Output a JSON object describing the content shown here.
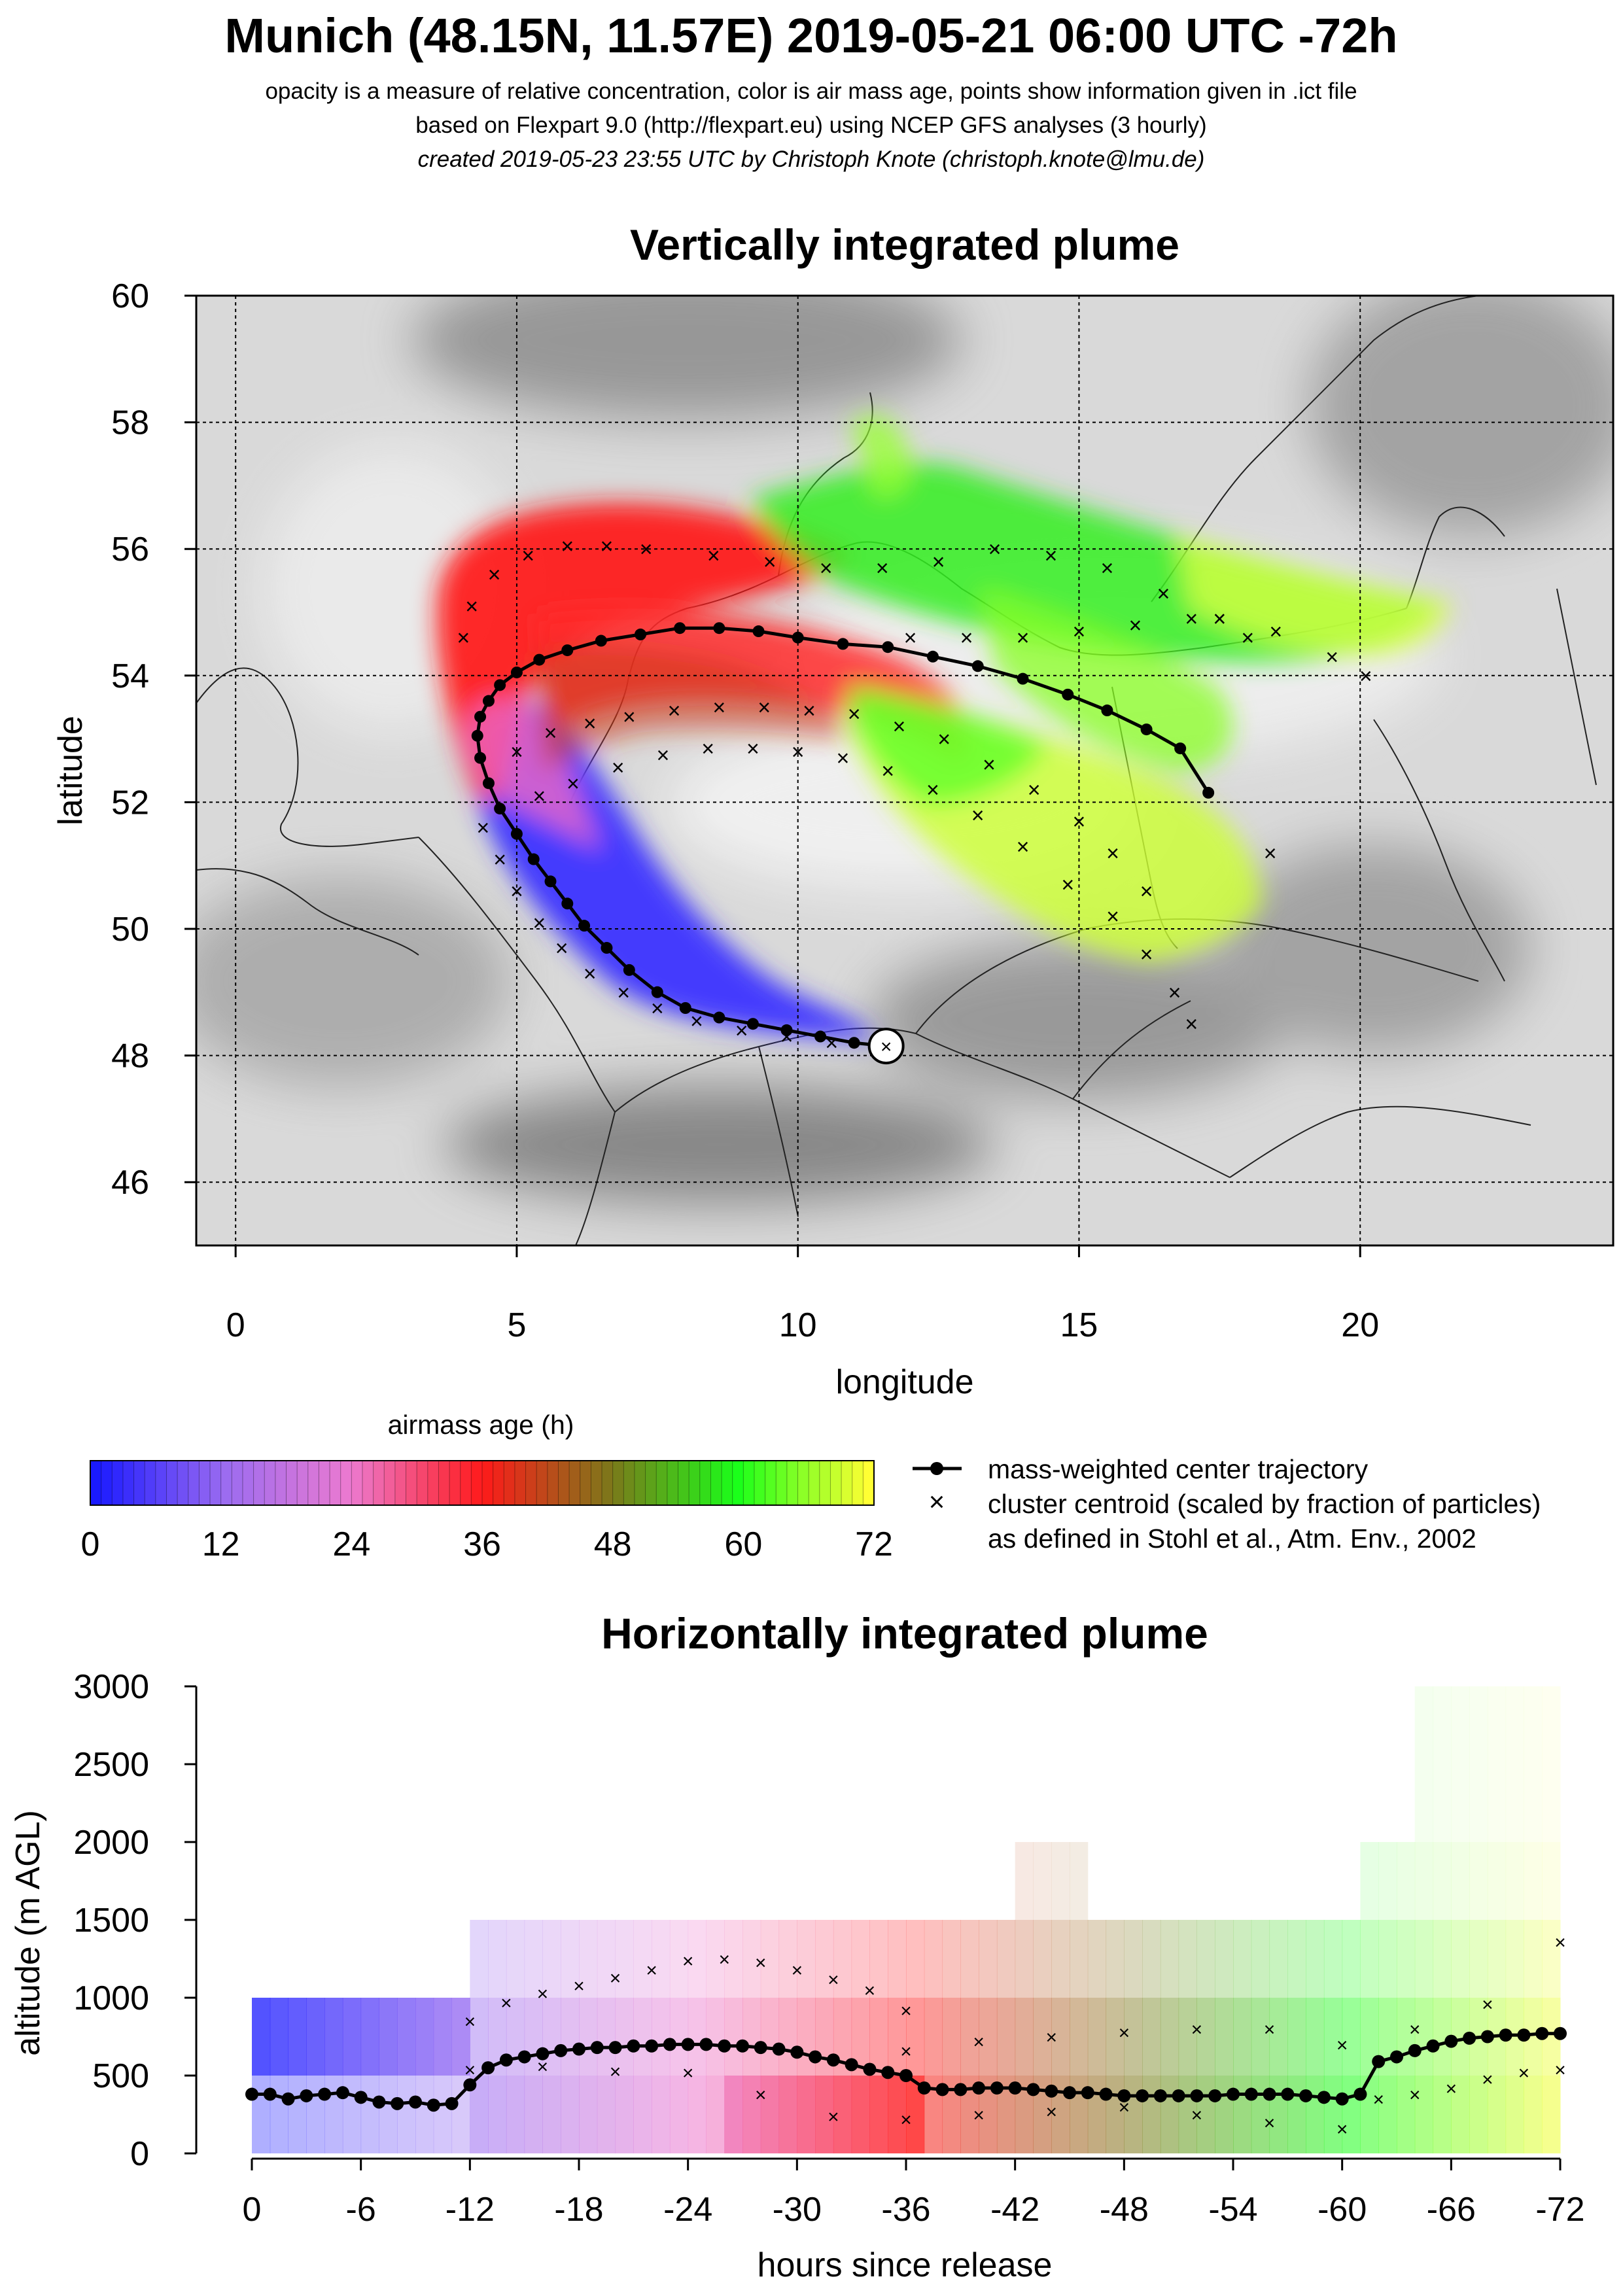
{
  "header": {
    "title": "Munich (48.15N, 11.57E) 2019-05-21 06:00 UTC -72h",
    "subtitle_1": "opacity is a measure of relative concentration, color is air mass age, points show information given in .ict file",
    "subtitle_2": "based on Flexpart 9.0 (http://flexpart.eu) using NCEP GFS analyses (3 hourly)",
    "subtitle_3": "created 2019-05-23 23:55 UTC by Christoph Knote (christoph.knote@lmu.de)"
  },
  "colors": {
    "age_0": "#1a1aff",
    "age_12": "#9d6cf0",
    "age_24": "#ec7ad0",
    "age_36": "#ff1a1a",
    "age_48": "#7a7a1a",
    "age_60": "#1aff1a",
    "age_72": "#ffff33",
    "land_gray": "#c8c8c8",
    "grid": "#000000"
  },
  "chart_data": [
    {
      "type": "scatter",
      "title": "Vertically integrated plume",
      "xlabel": "longitude",
      "ylabel": "latitude",
      "xlim": [
        -0.7,
        24.5
      ],
      "ylim": [
        45,
        60
      ],
      "xticks": [
        0,
        5,
        10,
        15,
        20
      ],
      "yticks": [
        46,
        48,
        50,
        52,
        54,
        56,
        58,
        60
      ],
      "grid": true,
      "release_point": {
        "lon": 11.57,
        "lat": 48.15
      },
      "series": [
        {
          "name": "mass-weighted center trajectory",
          "lon": [
            11.57,
            11.0,
            10.4,
            9.8,
            9.2,
            8.6,
            8.0,
            7.5,
            7.0,
            6.6,
            6.2,
            5.9,
            5.6,
            5.3,
            5.0,
            4.7,
            4.5,
            4.35,
            4.3,
            4.35,
            4.5,
            4.7,
            5.0,
            5.4,
            5.9,
            6.5,
            7.2,
            7.9,
            8.6,
            9.3,
            10.0,
            10.8,
            11.6,
            12.4,
            13.2,
            14.0,
            14.8,
            15.5,
            16.2,
            16.8,
            17.3
          ],
          "lat": [
            48.15,
            48.2,
            48.3,
            48.4,
            48.5,
            48.6,
            48.75,
            49.0,
            49.35,
            49.7,
            50.05,
            50.4,
            50.75,
            51.1,
            51.5,
            51.9,
            52.3,
            52.7,
            53.05,
            53.35,
            53.6,
            53.85,
            54.05,
            54.25,
            54.4,
            54.55,
            54.65,
            54.75,
            54.75,
            54.7,
            54.6,
            54.5,
            54.45,
            54.3,
            54.15,
            53.95,
            53.7,
            53.45,
            53.15,
            52.85,
            52.15
          ]
        },
        {
          "name": "cluster centroid (scaled by fraction of particles)",
          "tracks": [
            {
              "lon": [
                4.05,
                4.2,
                4.6,
                5.2,
                5.9,
                6.6,
                7.3
              ],
              "lat": [
                54.6,
                55.1,
                55.6,
                55.9,
                56.05,
                56.05,
                56.0
              ]
            },
            {
              "lon": [
                8.5,
                9.5,
                10.5,
                11.5,
                12.5,
                13.5,
                14.5,
                15.5,
                16.5,
                17.5,
                18.5,
                19.5,
                20.1
              ],
              "lat": [
                55.9,
                55.8,
                55.7,
                55.7,
                55.8,
                56.0,
                55.9,
                55.7,
                55.3,
                54.9,
                54.7,
                54.3,
                54.0
              ]
            },
            {
              "lon": [
                12.0,
                13.0,
                14.0,
                15.0,
                16.0,
                17.0,
                17.5,
                18.0,
                18.4
              ],
              "lat": [
                54.6,
                54.6,
                54.6,
                54.7,
                54.8,
                54.9,
                54.9,
                54.6,
                51.2
              ]
            },
            {
              "lon": [
                5.0,
                5.6,
                6.3,
                7.0,
                7.8,
                8.6,
                9.4,
                10.2,
                11.0,
                11.8,
                12.6,
                13.4,
                14.2,
                15.0,
                15.6,
                16.2
              ],
              "lat": [
                52.8,
                53.1,
                53.25,
                53.35,
                53.45,
                53.5,
                53.5,
                53.45,
                53.4,
                53.2,
                53.0,
                52.6,
                52.2,
                51.7,
                51.2,
                50.6
              ]
            },
            {
              "lon": [
                5.4,
                6.0,
                6.8,
                7.6,
                8.4,
                9.2,
                10.0,
                10.8,
                11.6,
                12.4,
                13.2,
                14.0,
                14.8,
                15.6,
                16.2,
                16.7,
                17.0
              ],
              "lat": [
                52.1,
                52.3,
                52.55,
                52.75,
                52.85,
                52.85,
                52.8,
                52.7,
                52.5,
                52.2,
                51.8,
                51.3,
                50.7,
                50.2,
                49.6,
                49.0,
                48.5
              ]
            },
            {
              "lon": [
                4.4,
                4.7,
                5.0,
                5.4,
                5.8,
                6.3,
                6.9,
                7.5,
                8.2,
                9.0,
                9.8,
                10.6
              ],
              "lat": [
                51.6,
                51.1,
                50.6,
                50.1,
                49.7,
                49.3,
                49.0,
                48.75,
                48.55,
                48.4,
                48.3,
                48.2
              ]
            }
          ]
        }
      ]
    },
    {
      "type": "line",
      "title": "Horizontally integrated plume",
      "xlabel": "hours since release",
      "ylabel": "altitude (m AGL)",
      "xlim": [
        1,
        -73
      ],
      "ylim": [
        0,
        3000
      ],
      "xticks": [
        0,
        -6,
        -12,
        -18,
        -24,
        -30,
        -36,
        -42,
        -48,
        -54,
        -60,
        -66,
        -72
      ],
      "xtick_labels": [
        "0",
        "-6",
        "-12",
        "-18",
        "-24",
        "-30",
        "-36",
        "-42",
        "-48",
        "-54",
        "-60",
        "-66",
        "-72"
      ],
      "yticks": [
        0,
        500,
        1000,
        1500,
        2000,
        2500,
        3000
      ],
      "series": [
        {
          "name": "mass-weighted center trajectory",
          "x": [
            0,
            -1,
            -2,
            -3,
            -4,
            -5,
            -6,
            -7,
            -8,
            -9,
            -10,
            -11,
            -12,
            -13,
            -14,
            -15,
            -16,
            -17,
            -18,
            -19,
            -20,
            -21,
            -22,
            -23,
            -24,
            -25,
            -26,
            -27,
            -28,
            -29,
            -30,
            -31,
            -32,
            -33,
            -34,
            -35,
            -36,
            -37,
            -38,
            -39,
            -40,
            -41,
            -42,
            -43,
            -44,
            -45,
            -46,
            -47,
            -48,
            -49,
            -50,
            -51,
            -52,
            -53,
            -54,
            -55,
            -56,
            -57,
            -58,
            -59,
            -60,
            -61,
            -62,
            -63,
            -64,
            -65,
            -66,
            -67,
            -68,
            -69,
            -70,
            -71,
            -72
          ],
          "y": [
            380,
            380,
            350,
            370,
            380,
            390,
            360,
            330,
            320,
            330,
            310,
            320,
            440,
            550,
            600,
            620,
            640,
            660,
            670,
            680,
            680,
            690,
            690,
            700,
            700,
            700,
            690,
            690,
            680,
            670,
            650,
            620,
            600,
            570,
            540,
            520,
            500,
            420,
            410,
            410,
            420,
            420,
            420,
            410,
            400,
            390,
            390,
            380,
            370,
            370,
            370,
            370,
            370,
            370,
            380,
            380,
            380,
            380,
            370,
            360,
            350,
            380,
            590,
            620,
            660,
            690,
            720,
            740,
            750,
            760,
            760,
            770,
            770
          ]
        },
        {
          "name": "cluster centroid (scaled by fraction of particles)",
          "tracks": [
            {
              "x": [
                -12,
                -14,
                -16,
                -18,
                -20,
                -22,
                -24,
                -26,
                -28,
                -30,
                -32,
                -34,
                -36
              ],
              "y": [
                850,
                970,
                1030,
                1080,
                1130,
                1180,
                1240,
                1250,
                1230,
                1180,
                1120,
                1050,
                920
              ]
            },
            {
              "x": [
                -12,
                -16,
                -20,
                -24,
                -28,
                -32,
                -36,
                -40,
                -44,
                -48,
                -52,
                -56,
                -60
              ],
              "y": [
                540,
                560,
                530,
                520,
                380,
                240,
                220,
                250,
                270,
                300,
                250,
                200,
                160
              ]
            },
            {
              "x": [
                -36,
                -40,
                -44,
                -48,
                -52,
                -56,
                -60,
                -64,
                -68,
                -72
              ],
              "y": [
                660,
                720,
                750,
                780,
                800,
                800,
                700,
                800,
                960,
                1360
              ]
            },
            {
              "x": [
                -60,
                -62,
                -64,
                -66,
                -68,
                -70,
                -72
              ],
              "y": [
                360,
                350,
                380,
                420,
                480,
                520,
                540
              ]
            }
          ]
        }
      ]
    }
  ],
  "legend": {
    "colorbar_title": "airmass age (h)",
    "colorbar_ticks": [
      "0",
      "12",
      "24",
      "36",
      "48",
      "60",
      "72"
    ],
    "line_entry": "mass-weighted center trajectory",
    "cross_entry": "cluster centroid (scaled by fraction of particles)",
    "cross_entry_2": "as defined in Stohl et al., Atm. Env., 2002"
  }
}
